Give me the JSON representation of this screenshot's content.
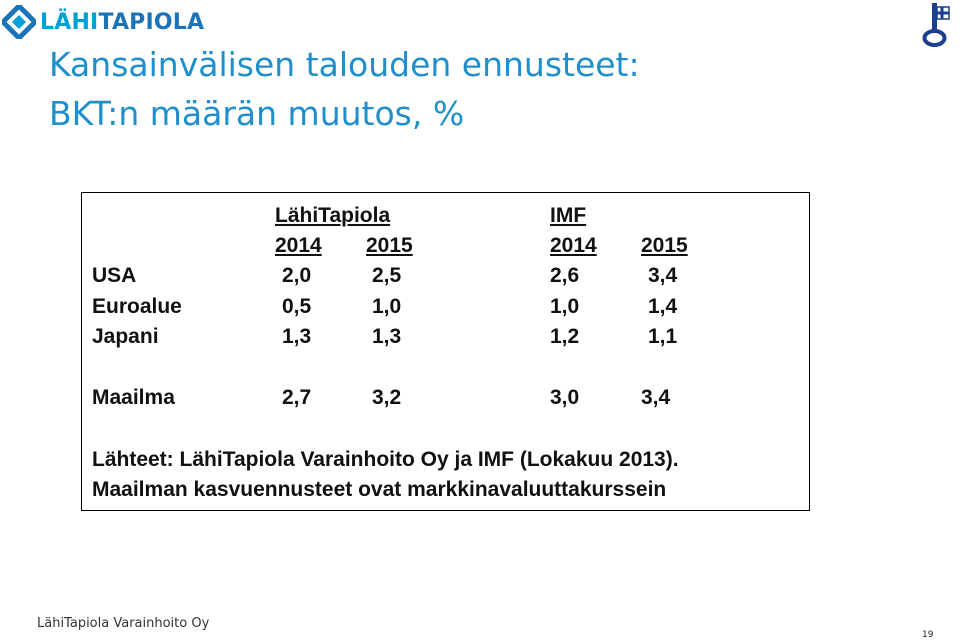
{
  "brand": {
    "name_part1": "LÄHI",
    "name_part2": "TAPIOLA"
  },
  "title": {
    "line1": "Kansainvälisen talouden ennusteet:",
    "line2": "BKT:n määrän muutos, %"
  },
  "table": {
    "group_headers": {
      "lahitapiola": "LähiTapiola ",
      "imf": "IMF"
    },
    "year_headers": [
      "2014",
      "2015",
      "2014",
      "2015"
    ],
    "rows": [
      {
        "label": "USA",
        "values": [
          "2,0",
          "2,5",
          "2,6",
          "3,4"
        ]
      },
      {
        "label": "Euroalue",
        "values": [
          "0,5",
          "1,0",
          "1,0",
          "1,4"
        ]
      },
      {
        "label": "Japani",
        "values": [
          "1,3",
          "1,3",
          "1,2",
          "1,1"
        ]
      },
      {
        "label": "Maailma",
        "values": [
          "2,7",
          "3,2",
          "3,0",
          "3,4"
        ]
      }
    ],
    "source_line1": "Lähteet: LähiTapiola Varainhoito Oy ja IMF (Lokakuu 2013).",
    "source_line2": "Maailman kasvuennusteet ovat markkinavaluuttakurssein"
  },
  "footer": {
    "company": "LähiTapiola Varainhoito Oy",
    "page_number": "19"
  },
  "colors": {
    "title": "#1f8fcc",
    "brand_light": "#00a0d2",
    "brand_dark": "#1b74b8"
  }
}
